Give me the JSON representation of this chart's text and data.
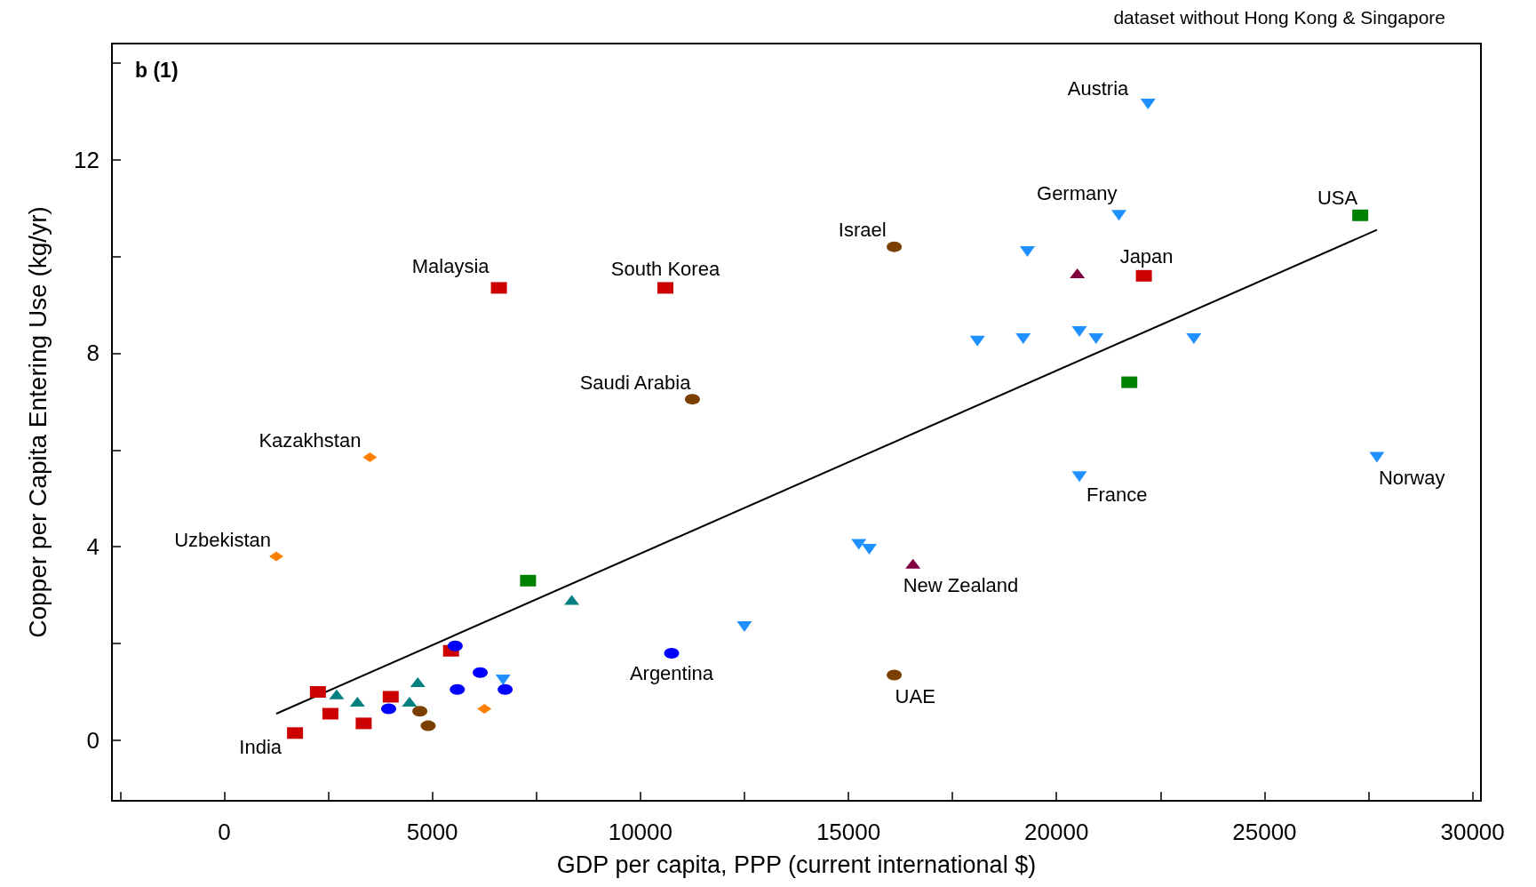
{
  "chart_data": {
    "type": "scatter",
    "title": "dataset without Hong Kong & Singapore",
    "xlabel": "GDP per capita, PPP (current international $)",
    "ylabel": "Copper per Capita Entering Use (kg/yr)",
    "xlim": [
      -2700,
      30200
    ],
    "ylim": [
      -1.25,
      14.4
    ],
    "xticks": [
      {
        "value": -2500,
        "label": null
      },
      0,
      {
        "value": 2500,
        "label": null
      },
      5000,
      {
        "value": 7500,
        "label": null
      },
      10000,
      {
        "value": 12500,
        "label": null
      },
      15000,
      {
        "value": 17500,
        "label": null
      },
      20000,
      {
        "value": 22500,
        "label": null
      },
      25000,
      {
        "value": 27500,
        "label": null
      },
      30000
    ],
    "yticks": [
      0,
      {
        "value": 2,
        "label": null
      },
      4,
      {
        "value": 6,
        "label": null
      },
      8,
      {
        "value": 10,
        "label": null
      },
      12,
      {
        "value": 14,
        "label": null
      }
    ],
    "grid": false,
    "series": [
      {
        "color": "#cc0000",
        "marker": "square",
        "x": [
          6600,
          10600,
          22100,
          1700,
          2250,
          2550,
          3350,
          4000,
          5450
        ],
        "values": [
          9.35,
          9.35,
          9.6,
          0.15,
          1.0,
          0.55,
          0.35,
          0.9,
          1.85
        ]
      },
      {
        "color": "#008000",
        "marker": "square",
        "x": [
          27300,
          21750,
          7300
        ],
        "values": [
          10.85,
          7.4,
          3.3
        ]
      },
      {
        "color": "#1e90ff",
        "marker": "triangle-down",
        "x": [
          22200,
          21500,
          19300,
          18100,
          19200,
          20550,
          20950,
          23300,
          20550,
          27700,
          15250,
          15500,
          12500,
          6700
        ],
        "values": [
          13.15,
          10.85,
          10.1,
          8.25,
          8.3,
          8.45,
          8.3,
          8.3,
          5.45,
          5.85,
          4.05,
          3.95,
          2.35,
          1.25
        ]
      },
      {
        "color": "#7b3f00",
        "marker": "circle",
        "x": [
          16100,
          11250,
          16100,
          4700,
          4900
        ],
        "values": [
          10.2,
          7.05,
          1.35,
          0.6,
          0.3
        ]
      },
      {
        "color": "#008080",
        "marker": "triangle",
        "x": [
          2700,
          3200,
          4450,
          4650,
          8350
        ],
        "values": [
          0.95,
          0.8,
          0.8,
          1.2,
          2.9
        ]
      },
      {
        "color": "#0000ff",
        "marker": "circle",
        "x": [
          5550,
          6150,
          5600,
          6750,
          3950,
          10750
        ],
        "values": [
          1.95,
          1.4,
          1.05,
          1.05,
          0.65,
          1.8
        ]
      },
      {
        "color": "#800040",
        "marker": "triangle",
        "x": [
          20500,
          16550
        ],
        "values": [
          9.65,
          3.65
        ]
      },
      {
        "color": "#ff8000",
        "marker": "diamond",
        "x": [
          3500,
          1250,
          6250
        ],
        "values": [
          5.85,
          3.8,
          0.65
        ]
      },
      {
        "type": "line",
        "color": "#000000",
        "marker": "none",
        "line_style": "solid",
        "x": [
          1250,
          27700
        ],
        "values": [
          0.55,
          10.55
        ]
      }
    ],
    "annotations": [
      "b (1)",
      {
        "text": "Austria",
        "x": 22200,
        "y": 13.15
      },
      {
        "text": "Germany",
        "x": 21500,
        "y": 10.85
      },
      {
        "text": "USA",
        "x": 27300,
        "y": 10.85
      },
      {
        "text": "Israel",
        "x": 16100,
        "y": 10.2
      },
      {
        "text": "Malaysia",
        "x": 6600,
        "y": 9.35
      },
      {
        "text": "South Korea",
        "x": 10600,
        "y": 9.35
      },
      {
        "text": "Japan",
        "x": 22100,
        "y": 9.6
      },
      {
        "text": "Saudi Arabia",
        "x": 11250,
        "y": 7.05
      },
      {
        "text": "Kazakhstan",
        "x": 3500,
        "y": 5.85
      },
      {
        "text": "Uzbekistan",
        "x": 1250,
        "y": 3.8
      },
      {
        "text": "France",
        "x": 20550,
        "y": 5.45
      },
      {
        "text": "Norway",
        "x": 27700,
        "y": 5.85
      },
      {
        "text": "New Zealand",
        "x": 16550,
        "y": 3.65
      },
      {
        "text": "Argentina",
        "x": 10750,
        "y": 1.8
      },
      {
        "text": "UAE",
        "x": 16100,
        "y": 1.35
      },
      {
        "text": "India",
        "x": 1700,
        "y": 0.15
      }
    ]
  }
}
